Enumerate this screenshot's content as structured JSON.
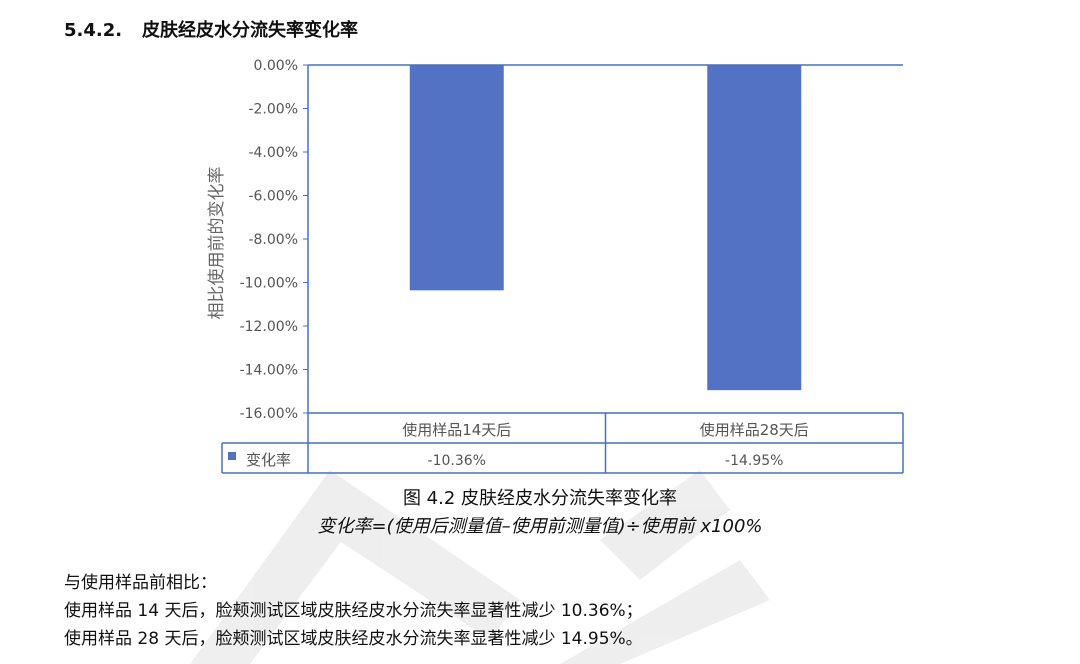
{
  "section": {
    "number": "5.4.2.",
    "title": "皮肤经皮水分流失率变化率"
  },
  "chart_data": {
    "type": "bar",
    "categories": [
      "使用样品14天后",
      "使用样品28天后"
    ],
    "series": [
      {
        "name": "变化率",
        "values": [
          -10.36,
          -14.95
        ],
        "labels": [
          "-10.36%",
          "-14.95%"
        ],
        "color": "#5472C4"
      }
    ],
    "ylabel": "相比使用前的变化率",
    "ylim": [
      -16,
      0
    ],
    "yticks": [
      "0.00%",
      "-2.00%",
      "-4.00%",
      "-6.00%",
      "-8.00%",
      "-10.00%",
      "-12.00%",
      "-14.00%",
      "-16.00%"
    ],
    "ytick_values": [
      0,
      -2,
      -4,
      -6,
      -8,
      -10,
      -12,
      -14,
      -16
    ],
    "grid": false,
    "data_table": true,
    "axis_color": "#4472C4"
  },
  "caption": {
    "figure": "图 4.2 皮肤经皮水分流失率变化率",
    "formula": "变化率=(使用后测量值–使用前测量值)÷使用前 x100%"
  },
  "text": {
    "intro": "与使用样品前相比：",
    "line1": "使用样品 14 天后，脸颊测试区域皮肤经皮水分流失率显著性减少 10.36%；",
    "line2": "使用样品 28 天后，脸颊测试区域皮肤经皮水分流失率显著性减少 14.95%。"
  }
}
